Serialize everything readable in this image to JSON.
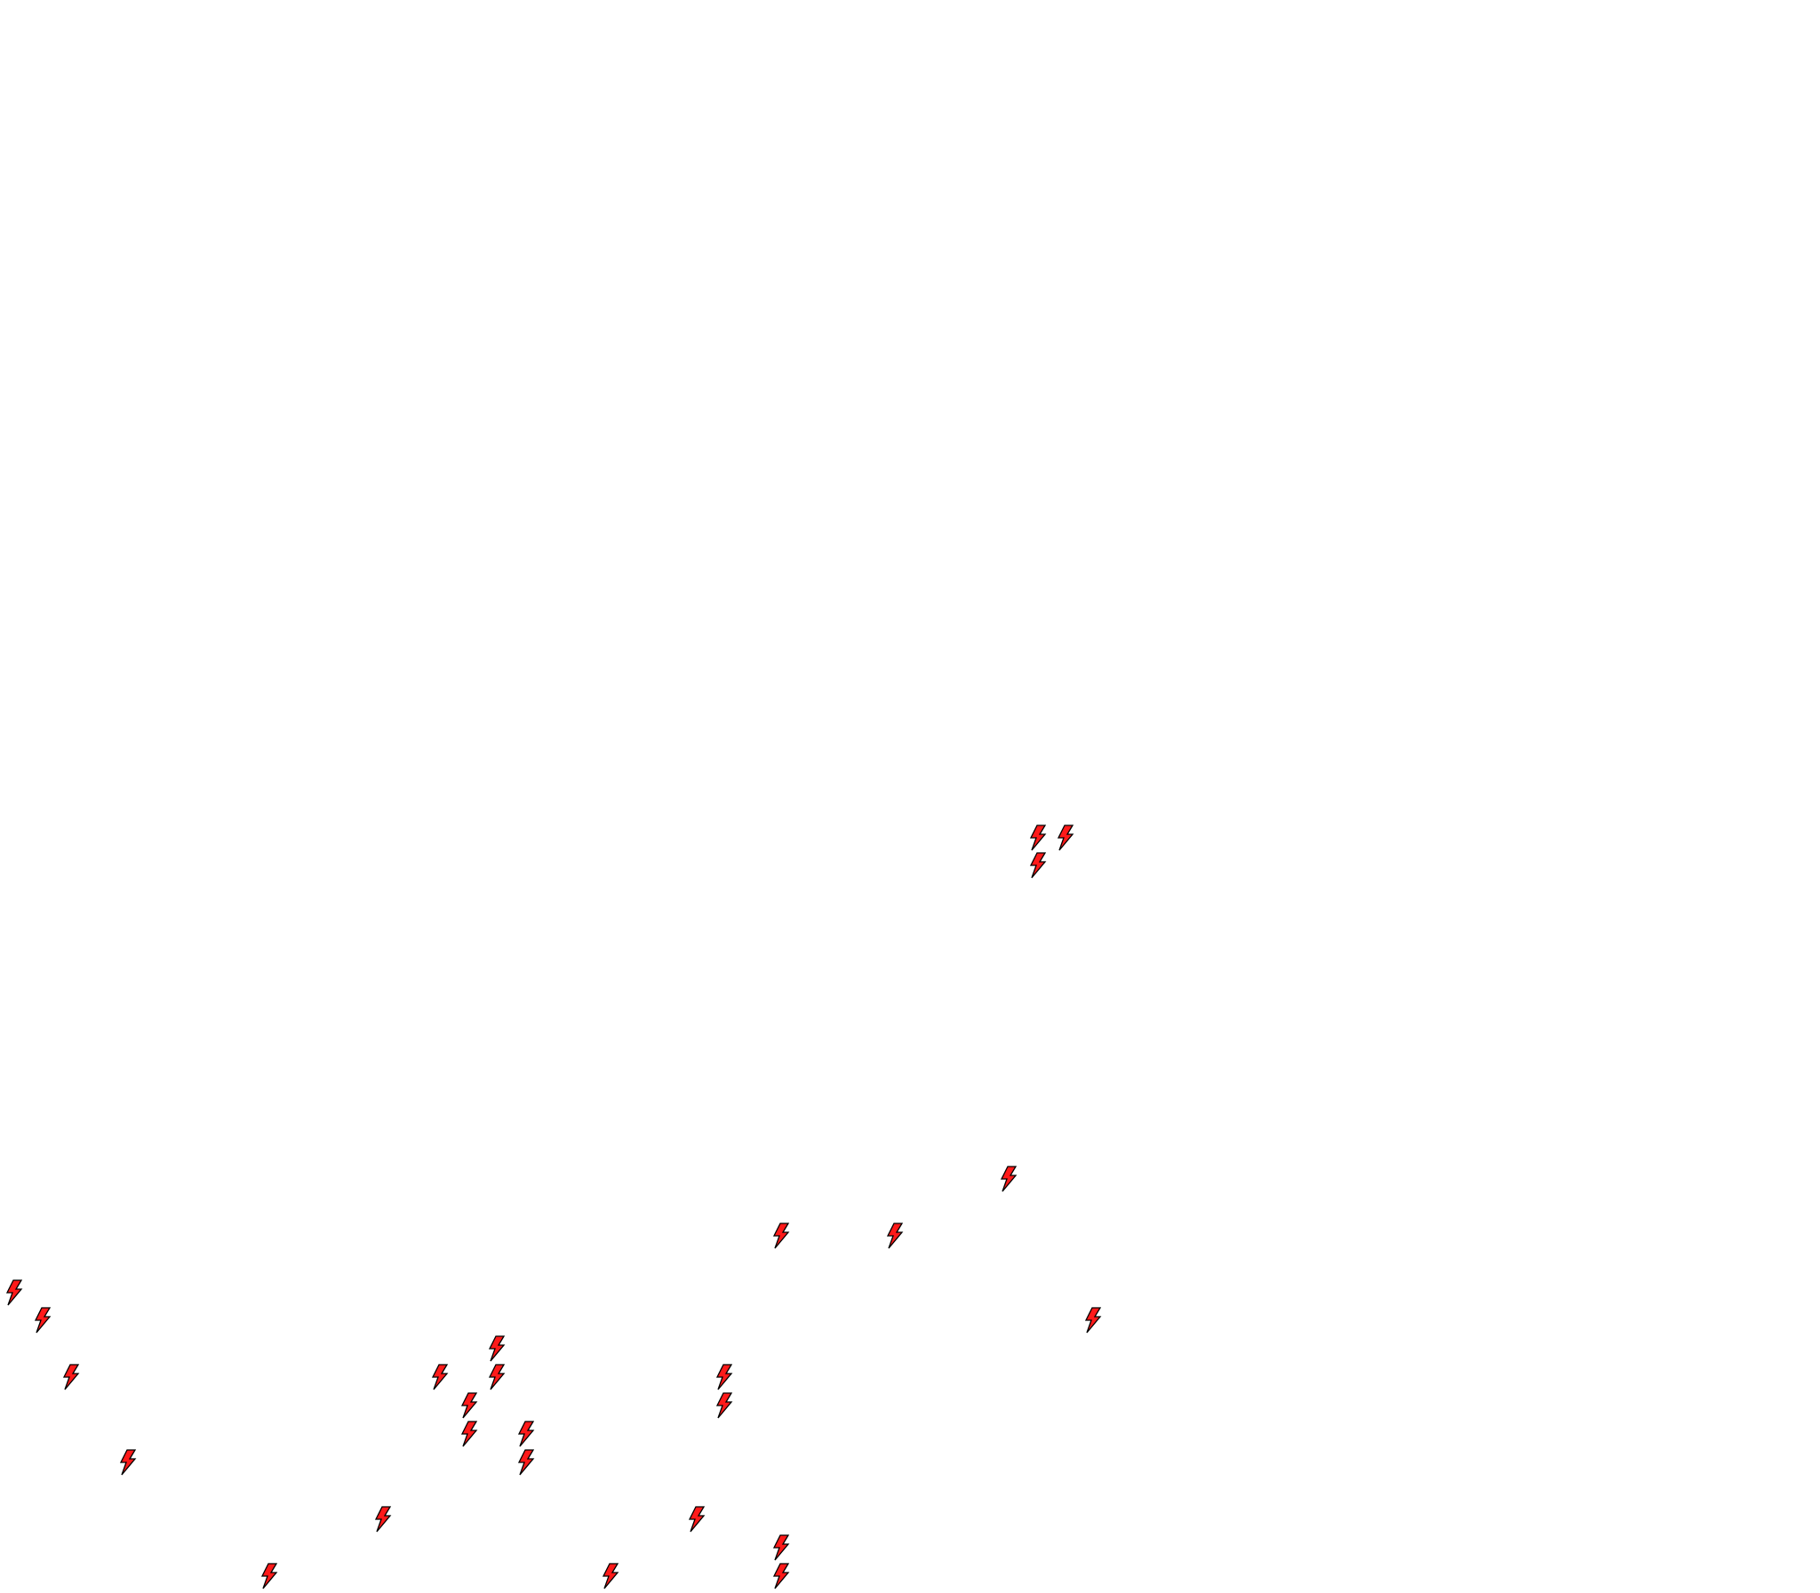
{
  "canvas": {
    "background": "#ffffff",
    "icon": "lightning-bolt-icon",
    "icon_fill": "#ff1a1a",
    "icon_stroke": "#000000",
    "icon_count": 26
  }
}
